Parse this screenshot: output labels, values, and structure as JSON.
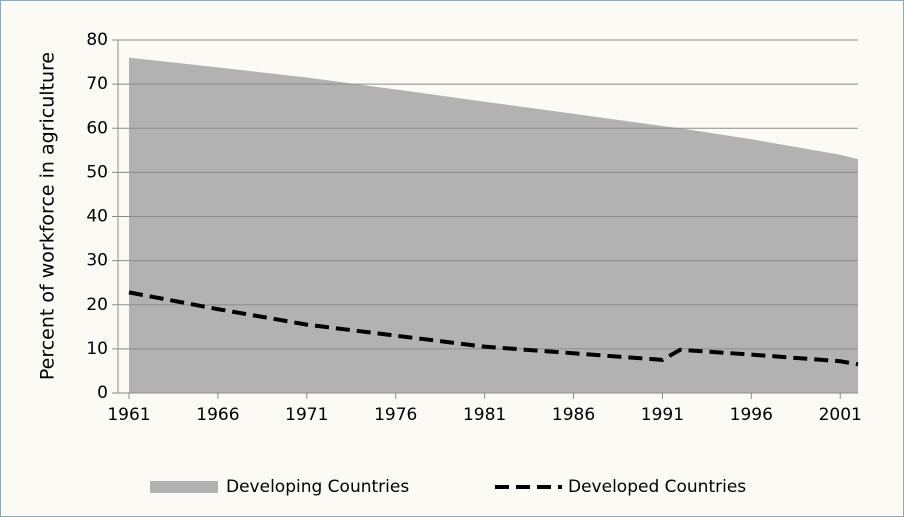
{
  "chart_data": {
    "type": "area-line",
    "ylabel": "Percent of workforce in agriculture",
    "x": [
      1961,
      1966,
      1971,
      1976,
      1981,
      1986,
      1991,
      1992,
      1996,
      2001,
      2002
    ],
    "xlim": [
      1961,
      2002
    ],
    "xticks": [
      1961,
      1966,
      1971,
      1976,
      1981,
      1986,
      1991,
      1996,
      2001
    ],
    "ylim": [
      0,
      80
    ],
    "yticks": [
      0,
      10,
      20,
      30,
      40,
      50,
      60,
      70,
      80
    ],
    "grid": true,
    "legend": "bottom",
    "series": [
      {
        "name": "Developing Countries",
        "color": "#b2b2b2",
        "kind": "area",
        "values": [
          76,
          73.8,
          71.5,
          68.8,
          66,
          63.3,
          60.5,
          60,
          57.5,
          54,
          53
        ]
      },
      {
        "name": "Developed Countries",
        "color": "#000000",
        "kind": "dashed-line",
        "values": [
          22.8,
          19,
          15.5,
          13,
          10.5,
          9,
          7.5,
          9.8,
          8.7,
          7.2,
          6.5
        ]
      }
    ]
  }
}
